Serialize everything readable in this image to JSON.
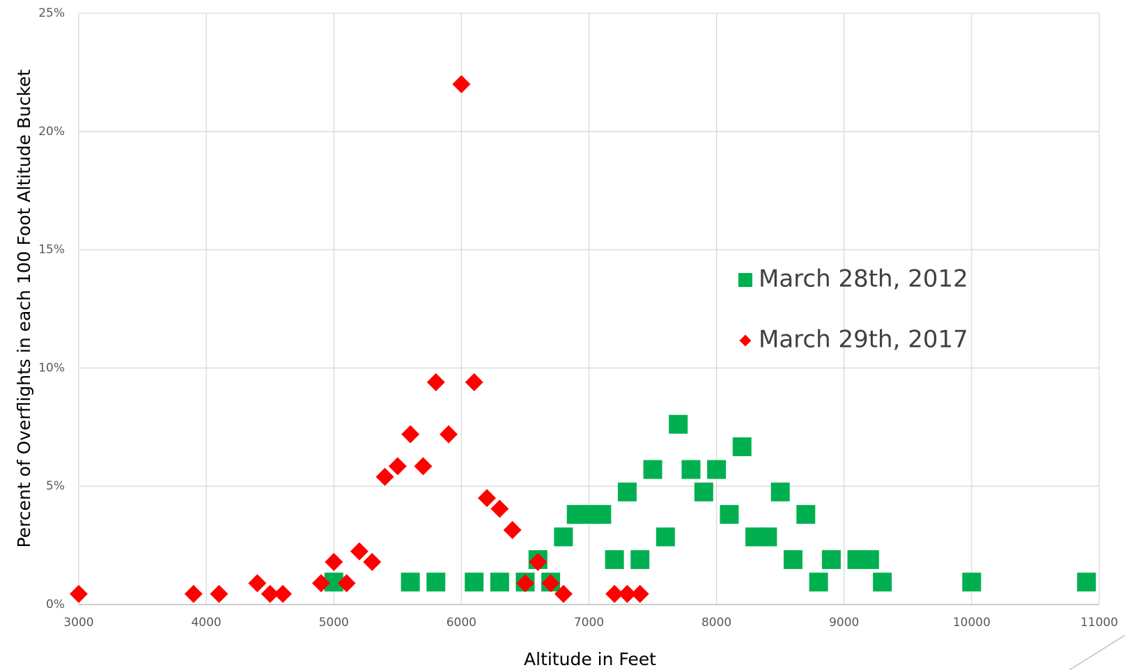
{
  "chart_data": {
    "type": "scatter",
    "x_label": "Altitude in Feet",
    "y_label": "Percent of Overflights in each 100 Foot Altitude  Bucket",
    "xlim": [
      3000,
      11000
    ],
    "xticks": [
      3000,
      4000,
      5000,
      6000,
      7000,
      8000,
      9000,
      10000,
      11000
    ],
    "ylim": [
      0,
      25
    ],
    "yticks": [
      {
        "value": 0,
        "label": "0%"
      },
      {
        "value": 5,
        "label": "5%"
      },
      {
        "value": 10,
        "label": "10%"
      },
      {
        "value": 15,
        "label": "15%"
      },
      {
        "value": 20,
        "label": "20%"
      },
      {
        "value": 25,
        "label": "25%"
      }
    ],
    "grid": true,
    "series": [
      {
        "name": "March 28th, 2012",
        "color": "#00b050",
        "marker": "square",
        "x": [
          5000,
          5600,
          5800,
          6100,
          6300,
          6500,
          6600,
          6700,
          6800,
          6900,
          7000,
          7100,
          7200,
          7300,
          7400,
          7500,
          7600,
          7700,
          7800,
          7900,
          8000,
          8100,
          8200,
          8300,
          8400,
          8500,
          8600,
          8700,
          8800,
          8900,
          9100,
          9200,
          9300,
          10000,
          10900
        ],
        "values": [
          0.95,
          0.95,
          0.95,
          0.95,
          0.95,
          0.95,
          1.9,
          0.95,
          2.86,
          3.81,
          3.81,
          3.81,
          1.9,
          4.76,
          1.9,
          5.71,
          2.86,
          7.62,
          5.71,
          4.76,
          5.71,
          3.81,
          6.67,
          2.86,
          2.86,
          4.76,
          1.9,
          3.81,
          0.95,
          1.9,
          1.9,
          1.9,
          0.95,
          0.95,
          0.95
        ]
      },
      {
        "name": "March 29th, 2017",
        "color": "#ff0000",
        "marker": "diamond",
        "x": [
          3000,
          3900,
          4100,
          4400,
          4500,
          4600,
          4900,
          5000,
          5100,
          5200,
          5300,
          5400,
          5500,
          5600,
          5700,
          5800,
          5900,
          6000,
          6100,
          6200,
          6300,
          6400,
          6500,
          6600,
          6700,
          6800,
          7200,
          7300,
          7400
        ],
        "values": [
          0.45,
          0.45,
          0.45,
          0.9,
          0.45,
          0.45,
          0.9,
          1.8,
          0.9,
          2.25,
          1.8,
          5.4,
          5.85,
          7.2,
          5.85,
          9.4,
          7.2,
          22,
          9.4,
          4.5,
          4.05,
          3.15,
          0.9,
          1.8,
          0.9,
          0.45,
          0.45,
          0.45,
          0.45
        ]
      }
    ]
  }
}
